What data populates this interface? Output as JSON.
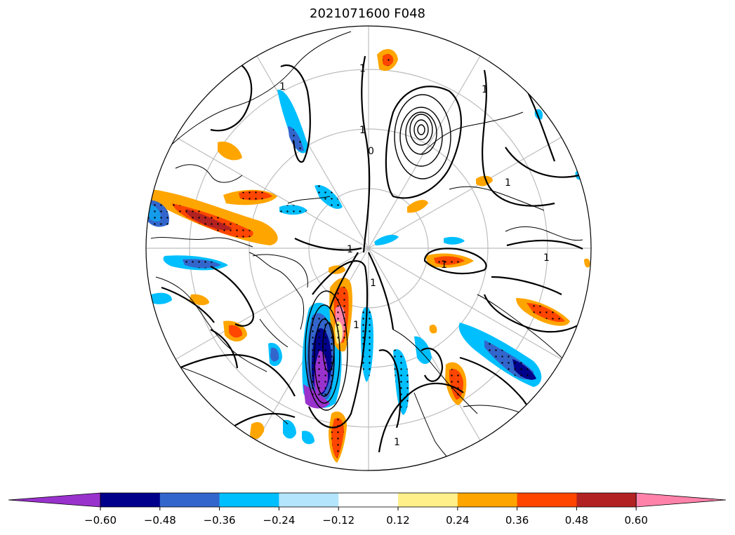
{
  "title": "2021071600 F048",
  "colorbar": {
    "ticks": [
      "−0.60",
      "−0.48",
      "−0.36",
      "−0.24",
      "−0.12",
      "0.12",
      "0.24",
      "0.36",
      "0.48",
      "0.60"
    ],
    "colors": [
      "#9932cc",
      "#00008b",
      "#3366cc",
      "#00bfff",
      "#b3e5fc",
      "#ffffff",
      "#fff08a",
      "#ffa500",
      "#ff4500",
      "#b22222",
      "#ff82ab"
    ],
    "extend": "both"
  },
  "contour_labels": [
    "1",
    "1",
    "1",
    "1",
    "1",
    "1",
    "1",
    "1",
    "1",
    "0",
    "1",
    "1"
  ],
  "projection": "north-polar-stereographic"
}
